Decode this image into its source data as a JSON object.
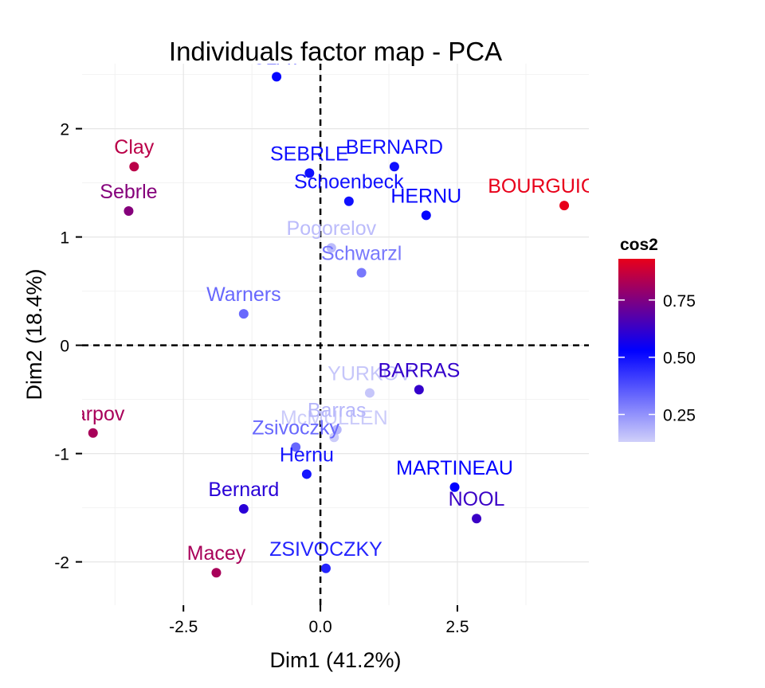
{
  "chart_data": {
    "type": "scatter",
    "title": "Individuals factor map - PCA",
    "xlabel": "Dim1 (41.2%)",
    "ylabel": "Dim2 (18.4%)",
    "xlim": [
      -4.35,
      4.9
    ],
    "ylim": [
      -2.4,
      2.6
    ],
    "x_ticks": [
      -2.5,
      0,
      2.5
    ],
    "x_tick_labels": [
      "-2.5",
      "0.0",
      "2.5"
    ],
    "y_ticks": [
      -2,
      -1,
      0,
      1,
      2
    ],
    "y_tick_labels": [
      "-2",
      "-1",
      "0",
      "1",
      "2"
    ],
    "grid": true,
    "reference_lines": {
      "x": 0,
      "y": 0,
      "style": "dashed"
    },
    "color_by": "cos2",
    "legend": {
      "title": "cos2",
      "position": "right",
      "range": [
        0.13,
        0.93
      ],
      "ticks": [
        0.25,
        0.5,
        0.75
      ],
      "tick_labels": [
        "0.25",
        "0.50",
        "0.75"
      ],
      "colors": {
        "low": "#d0d0fa",
        "mid": "#0000ff",
        "high": "#e8001a"
      }
    },
    "points": [
      {
        "label": "SEBRLE",
        "x": -0.2,
        "y": 1.59,
        "cos2": 0.5
      },
      {
        "label": "CLAY",
        "x": -0.8,
        "y": 2.48,
        "cos2": 0.52
      },
      {
        "label": "BERNARD",
        "x": 1.35,
        "y": 1.65,
        "cos2": 0.5
      },
      {
        "label": "YURKOV",
        "x": 0.9,
        "y": -0.44,
        "cos2": 0.15
      },
      {
        "label": "ZSIVOCZKY",
        "x": 0.1,
        "y": -2.06,
        "cos2": 0.46
      },
      {
        "label": "McMULLEN",
        "x": 0.25,
        "y": -0.85,
        "cos2": 0.14
      },
      {
        "label": "MARTINEAU",
        "x": 2.45,
        "y": -1.31,
        "cos2": 0.53
      },
      {
        "label": "HERNU",
        "x": 1.93,
        "y": 1.2,
        "cos2": 0.52
      },
      {
        "label": "BARRAS",
        "x": 1.8,
        "y": -0.41,
        "cos2": 0.62
      },
      {
        "label": "NOOL",
        "x": 2.85,
        "y": -1.6,
        "cos2": 0.63
      },
      {
        "label": "BOURGUIGNON",
        "x": 4.45,
        "y": 1.29,
        "cos2": 0.93
      },
      {
        "label": "Sebrle",
        "x": -3.5,
        "y": 1.24,
        "cos2": 0.76
      },
      {
        "label": "Clay",
        "x": -3.4,
        "y": 1.65,
        "cos2": 0.85
      },
      {
        "label": "Karpov",
        "x": -4.15,
        "y": -0.81,
        "cos2": 0.82
      },
      {
        "label": "Macey",
        "x": -1.9,
        "y": -2.1,
        "cos2": 0.82
      },
      {
        "label": "Warners",
        "x": -1.4,
        "y": 0.29,
        "cos2": 0.33
      },
      {
        "label": "Zsivoczky",
        "x": -0.45,
        "y": -0.94,
        "cos2": 0.33
      },
      {
        "label": "Hernu",
        "x": -0.25,
        "y": -1.19,
        "cos2": 0.49
      },
      {
        "label": "Bernard",
        "x": -1.4,
        "y": -1.51,
        "cos2": 0.6
      },
      {
        "label": "Schwarzl",
        "x": 0.75,
        "y": 0.67,
        "cos2": 0.3
      },
      {
        "label": "Pogorelov",
        "x": 0.2,
        "y": 0.9,
        "cos2": 0.17
      },
      {
        "label": "Schoenbeck",
        "x": 0.52,
        "y": 1.33,
        "cos2": 0.5
      },
      {
        "label": "Barras",
        "x": 0.3,
        "y": -0.78,
        "cos2": 0.18
      }
    ]
  }
}
